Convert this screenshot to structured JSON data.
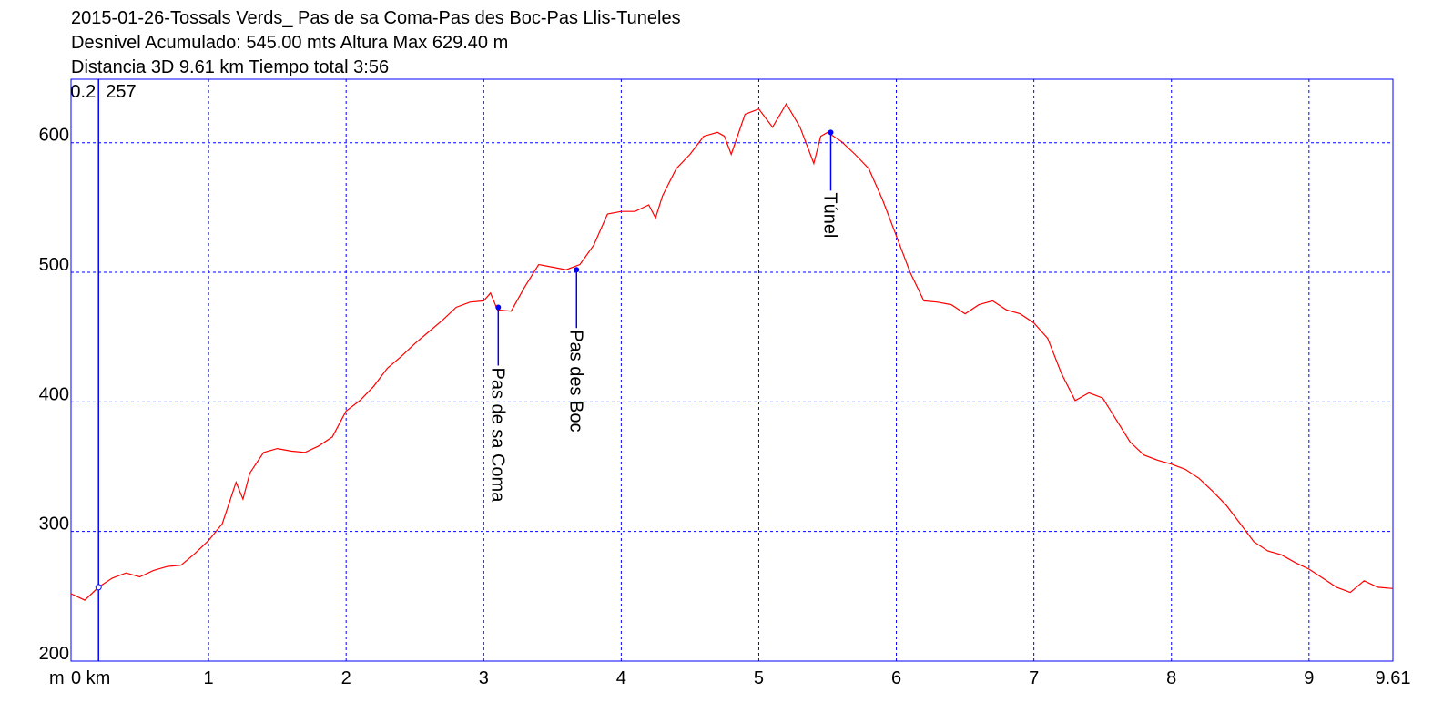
{
  "chart_data": {
    "type": "line",
    "title": "2015-01-26-Tossals Verds_ Pas de sa Coma-Pas des Boc-Pas Llis-Tuneles",
    "subtitle": "Desnivel Acumulado: 545.00 mts  Altura Max 629.40 m",
    "subtitle2": "Distancia 3D 9.61 km  Tiempo total 3:56",
    "y_label": "m",
    "xlim": [
      0,
      9.61
    ],
    "ylim": [
      200,
      649
    ],
    "xticks": [
      {
        "value": 0,
        "label": "0 km"
      },
      1,
      2,
      3,
      4,
      5,
      6,
      7,
      8,
      9,
      9.61
    ],
    "yticks": [
      200,
      300,
      400,
      500,
      600
    ],
    "grid": true,
    "x": [
      0,
      0.1,
      0.2,
      0.3,
      0.4,
      0.5,
      0.6,
      0.7,
      0.8,
      0.9,
      1.0,
      1.1,
      1.2,
      1.25,
      1.3,
      1.4,
      1.5,
      1.6,
      1.7,
      1.8,
      1.9,
      2.0,
      2.1,
      2.2,
      2.3,
      2.4,
      2.5,
      2.6,
      2.7,
      2.8,
      2.9,
      3.0,
      3.05,
      3.1,
      3.2,
      3.3,
      3.4,
      3.5,
      3.6,
      3.7,
      3.8,
      3.9,
      4.0,
      4.1,
      4.2,
      4.25,
      4.3,
      4.4,
      4.5,
      4.6,
      4.7,
      4.75,
      4.8,
      4.9,
      5.0,
      5.1,
      5.2,
      5.3,
      5.4,
      5.45,
      5.5,
      5.6,
      5.7,
      5.8,
      5.9,
      6.0,
      6.1,
      6.2,
      6.3,
      6.4,
      6.5,
      6.6,
      6.7,
      6.8,
      6.9,
      7.0,
      7.1,
      7.2,
      7.3,
      7.4,
      7.5,
      7.6,
      7.7,
      7.8,
      7.9,
      8.0,
      8.1,
      8.2,
      8.3,
      8.4,
      8.5,
      8.6,
      8.7,
      8.8,
      8.9,
      9.0,
      9.1,
      9.2,
      9.3,
      9.4,
      9.5,
      9.61
    ],
    "series": [
      {
        "name": "Altura",
        "color": "#ff0000",
        "values": [
          252,
          247,
          257,
          264,
          268,
          265,
          270,
          273,
          274,
          283,
          293,
          306,
          338,
          325,
          345,
          361,
          364,
          362,
          361,
          366,
          373,
          393,
          401,
          412,
          426,
          435,
          445,
          454,
          463,
          473,
          477,
          478,
          484,
          471,
          470,
          489,
          506,
          504,
          502,
          506,
          521,
          545,
          547,
          547,
          552,
          542,
          559,
          580,
          591,
          605,
          608,
          605,
          591,
          622,
          626,
          612,
          630,
          612,
          584,
          605,
          608,
          601,
          591,
          580,
          556,
          528,
          500,
          478,
          477,
          475,
          468,
          475,
          478,
          471,
          468,
          461,
          449,
          422,
          401,
          407,
          403,
          386,
          369,
          359,
          355,
          352,
          348,
          341,
          331,
          320,
          306,
          292,
          285,
          282,
          276,
          271,
          264,
          257,
          253,
          262,
          257,
          256
        ]
      }
    ],
    "cursor": {
      "x": 0.2,
      "y": 257
    },
    "waypoints": [
      {
        "name": "Pas de sa Coma",
        "x": 3.106,
        "y": 473
      },
      {
        "name": "Pas des Boc",
        "x": 3.675,
        "y": 502
      },
      {
        "name": "Túnel",
        "x": 5.523,
        "y": 608
      }
    ]
  }
}
